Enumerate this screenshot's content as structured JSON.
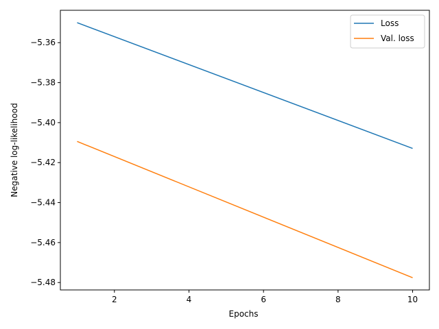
{
  "chart_data": {
    "type": "line",
    "title": "",
    "xlabel": "Epochs",
    "ylabel": "Negative log-likelihood",
    "xlim": [
      0.55,
      10.45
    ],
    "ylim": [
      -5.4837,
      -5.3438
    ],
    "xticks": [
      2,
      4,
      6,
      8,
      10
    ],
    "xtick_labels": [
      "2",
      "4",
      "6",
      "8",
      "10"
    ],
    "yticks": [
      -5.36,
      -5.38,
      -5.4,
      -5.42,
      -5.44,
      -5.46,
      -5.48
    ],
    "ytick_labels": [
      "−5.36",
      "−5.38",
      "−5.40",
      "−5.42",
      "−5.44",
      "−5.46",
      "−5.48"
    ],
    "grid": false,
    "legend_position": "top-right",
    "series": [
      {
        "name": "Loss",
        "color": "#1f77b4",
        "x": [
          1,
          10
        ],
        "y": [
          -5.35,
          -5.4129
        ]
      },
      {
        "name": "Val. loss",
        "color": "#ff7f0e",
        "x": [
          1,
          10
        ],
        "y": [
          -5.4094,
          -5.4776
        ]
      }
    ]
  }
}
